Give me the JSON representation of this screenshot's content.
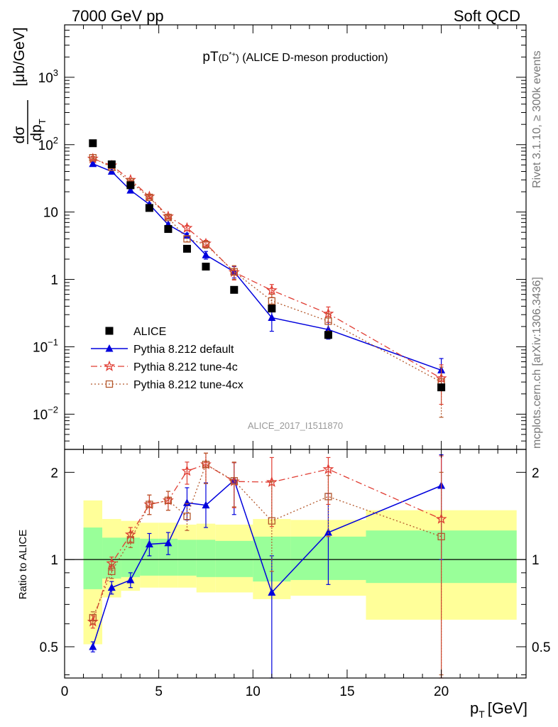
{
  "header": {
    "left": "7000 GeV pp",
    "right": "Soft QCD"
  },
  "side_labels": {
    "rivet": "Rivet 3.1.10, ≥ 300k events",
    "mcplots": "mcplots.cern.ch [arXiv:1306.3436]"
  },
  "watermark": "ALICE_2017_I1511870",
  "colors": {
    "data": "#000000",
    "default": "#0000dd",
    "tune4c": "#e03c32",
    "tune4cx": "#b4582c",
    "band_inner": "#99ff99",
    "band_outer": "#ffff99"
  },
  "chart_data": [
    {
      "type": "scatter",
      "title": "pT(D*+) (ALICE D-meson production)",
      "title_main": "pT",
      "title_particle": "(D",
      "title_particle_sup": "*+",
      "title_particle_close": ")",
      "title_rest": " (ALICE D-meson production)",
      "ylabel_num": "dσ",
      "ylabel_den": "dp",
      "ylabel_den_sub": "T",
      "ylabel_unit": "[μb/GeV]",
      "yscale": "log",
      "ylim": [
        0.003,
        6000
      ],
      "xlim": [
        0,
        24.5
      ],
      "ytick_labels": [
        {
          "value": 0.01,
          "base": "10",
          "exp": "−2"
        },
        {
          "value": 0.1,
          "base": "10",
          "exp": "−1"
        },
        {
          "value": 1,
          "base": "1",
          "exp": ""
        },
        {
          "value": 10,
          "base": "10",
          "exp": ""
        },
        {
          "value": 100,
          "base": "10",
          "exp": "2"
        },
        {
          "value": 1000,
          "base": "10",
          "exp": "3"
        }
      ],
      "legend": {
        "position": "bottom-left",
        "entries": [
          {
            "key": "data",
            "label": "ALICE"
          },
          {
            "key": "default",
            "label": "Pythia 8.212 default"
          },
          {
            "key": "tune4c",
            "label": "Pythia 8.212 tune-4c"
          },
          {
            "key": "tune4cx",
            "label": "Pythia 8.212 tune-4cx"
          }
        ]
      },
      "series": [
        {
          "key": "data",
          "marker": "square",
          "x": [
            1.5,
            2.5,
            3.5,
            4.5,
            5.5,
            6.5,
            7.5,
            9,
            11,
            14,
            20
          ],
          "y": [
            105,
            51,
            25,
            11.5,
            5.6,
            2.85,
            1.55,
            0.7,
            0.37,
            0.15,
            0.025
          ],
          "xlo": [
            1,
            2,
            3,
            4,
            5,
            6,
            7,
            8,
            10,
            12,
            16
          ],
          "xhi": [
            2,
            3,
            4,
            5,
            6,
            7,
            8,
            10,
            12,
            16,
            24
          ]
        },
        {
          "key": "default",
          "marker": "triangle",
          "line": "solid",
          "x": [
            1.5,
            2.5,
            3.5,
            4.5,
            5.5,
            6.5,
            7.5,
            9,
            11,
            14,
            20
          ],
          "y": [
            52,
            40,
            21,
            13,
            6.5,
            4.5,
            2.3,
            1.3,
            0.27,
            0.18,
            0.045
          ],
          "err_lo": [
            2,
            1.5,
            1,
            0.6,
            0.4,
            0.35,
            0.3,
            0.25,
            0.1,
            0.05,
            0.02
          ],
          "err_hi": [
            2,
            1.5,
            1,
            0.6,
            0.4,
            0.35,
            0.3,
            0.25,
            0.1,
            0.05,
            0.022
          ]
        },
        {
          "key": "tune4c",
          "marker": "star",
          "line": "dashdot",
          "x": [
            1.5,
            2.5,
            3.5,
            4.5,
            5.5,
            6.5,
            7.5,
            9,
            11,
            14,
            20
          ],
          "y": [
            62,
            49,
            30,
            17,
            8.6,
            5.8,
            3.4,
            1.28,
            0.69,
            0.31,
            0.034
          ],
          "err_lo": [
            2.5,
            2,
            1.5,
            0.9,
            0.5,
            0.5,
            0.4,
            0.3,
            0.15,
            0.08,
            0.02
          ],
          "err_hi": [
            2.5,
            2,
            1.5,
            0.9,
            0.5,
            0.5,
            0.4,
            0.3,
            0.15,
            0.08,
            0.02
          ]
        },
        {
          "key": "tune4cx",
          "marker": "opensquare",
          "line": "dotted",
          "x": [
            1.5,
            2.5,
            3.5,
            4.5,
            5.5,
            6.5,
            7.5,
            9,
            11,
            14,
            20
          ],
          "y": [
            64,
            46,
            28,
            16.5,
            8.3,
            4.0,
            3.3,
            1.3,
            0.48,
            0.24,
            0.03
          ],
          "err_lo": [
            2.5,
            2,
            1.5,
            0.9,
            0.5,
            0.4,
            0.4,
            0.3,
            0.12,
            0.07,
            0.021
          ],
          "err_hi": [
            2.5,
            2,
            1.5,
            0.9,
            0.5,
            0.4,
            0.4,
            0.3,
            0.12,
            0.07,
            0.02
          ]
        }
      ]
    },
    {
      "type": "scatter",
      "ylabel": "Ratio to ALICE",
      "yscale": "log",
      "ylim": [
        0.39,
        2.4
      ],
      "xlim": [
        0,
        24.5
      ],
      "xlabel_main": "p",
      "xlabel_sub": "T",
      "xlabel_unit": "[GeV]",
      "xtick_labels": [
        0,
        5,
        10,
        15,
        20
      ],
      "ytick_labels": [
        0.5,
        1,
        2
      ],
      "reference_line": 1,
      "bands": {
        "xlo": [
          1,
          2,
          3,
          4,
          5,
          6,
          7,
          8,
          10,
          12,
          16
        ],
        "xhi": [
          2,
          3,
          4,
          5,
          6,
          7,
          8,
          10,
          12,
          16,
          24
        ],
        "outer_lo": [
          0.51,
          0.74,
          0.78,
          0.8,
          0.8,
          0.8,
          0.77,
          0.77,
          0.73,
          0.75,
          0.62
        ],
        "outer_hi": [
          1.6,
          1.38,
          1.36,
          1.34,
          1.34,
          1.32,
          1.33,
          1.32,
          1.38,
          1.37,
          1.48
        ],
        "inner_lo": [
          0.79,
          0.86,
          0.87,
          0.88,
          0.88,
          0.88,
          0.87,
          0.87,
          0.84,
          0.85,
          0.83
        ],
        "inner_hi": [
          1.29,
          1.19,
          1.19,
          1.18,
          1.18,
          1.17,
          1.17,
          1.16,
          1.2,
          1.2,
          1.26
        ]
      },
      "series": [
        {
          "key": "default",
          "marker": "triangle",
          "line": "solid",
          "x": [
            1.5,
            2.5,
            3.5,
            4.5,
            5.5,
            6.5,
            7.5,
            9,
            11,
            14,
            20
          ],
          "y": [
            0.5,
            0.8,
            0.85,
            1.13,
            1.14,
            1.57,
            1.54,
            1.88,
            0.77,
            1.24,
            1.8
          ],
          "err_lo": [
            0.02,
            0.04,
            0.05,
            0.1,
            0.1,
            0.2,
            0.25,
            0.45,
            0.38,
            0.42,
            0.8
          ],
          "err_hi": [
            0.02,
            0.04,
            0.05,
            0.1,
            0.1,
            0.2,
            0.3,
            0.28,
            0.26,
            0.45,
            0.5
          ]
        },
        {
          "key": "tune4c",
          "marker": "star",
          "line": "dashdot",
          "x": [
            1.5,
            2.5,
            3.5,
            4.5,
            5.5,
            6.5,
            7.5,
            9,
            11,
            14,
            20
          ],
          "y": [
            0.61,
            0.97,
            1.22,
            1.55,
            1.6,
            2.02,
            2.13,
            1.86,
            1.85,
            2.05,
            1.38
          ],
          "err_lo": [
            0.03,
            0.05,
            0.07,
            0.12,
            0.12,
            0.2,
            0.3,
            0.35,
            0.55,
            0.5,
            1.0
          ],
          "err_hi": [
            0.03,
            0.05,
            0.07,
            0.12,
            0.12,
            0.15,
            0.2,
            0.3,
            0.4,
            0.2,
            0.9
          ]
        },
        {
          "key": "tune4cx",
          "marker": "opensquare",
          "line": "dotted",
          "x": [
            1.5,
            2.5,
            3.5,
            4.5,
            5.5,
            6.5,
            7.5,
            9,
            11,
            14,
            20
          ],
          "y": [
            0.63,
            0.91,
            1.17,
            1.55,
            1.6,
            1.41,
            2.13,
            1.87,
            1.36,
            1.65,
            1.2
          ],
          "err_lo": [
            0.03,
            0.05,
            0.07,
            0.12,
            0.12,
            0.15,
            0.3,
            0.35,
            0.45,
            0.45,
            0.8
          ],
          "err_hi": [
            0.03,
            0.05,
            0.07,
            0.12,
            0.12,
            0.15,
            0.2,
            0.3,
            0.5,
            0.3,
            0.8
          ]
        }
      ]
    }
  ]
}
